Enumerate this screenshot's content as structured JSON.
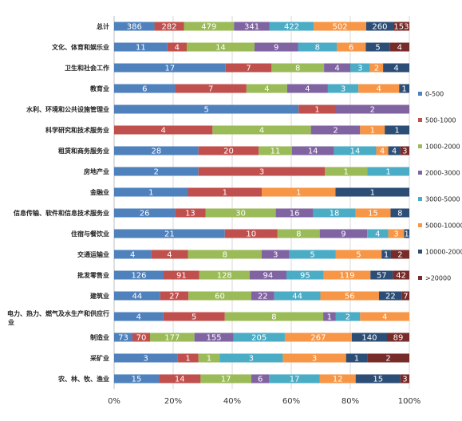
{
  "colors": [
    "#4F81BD",
    "#C0504D",
    "#9BBB59",
    "#8064A2",
    "#4BACC6",
    "#F79646",
    "#2C4D75",
    "#772C2A"
  ],
  "chart_data": {
    "type": "bar",
    "orientation": "horizontal",
    "stacked": "percent",
    "xlim": [
      0,
      100
    ],
    "x_ticks": [
      "0%",
      "20%",
      "40%",
      "60%",
      "80%",
      "100%"
    ],
    "grid": true,
    "legend_position": "right",
    "categories": [
      "总计",
      "文化、体育和娱乐业",
      "卫生和社会工作",
      "教育业",
      "水利、环境和公共设施管理业",
      "科学研究和技术服务业",
      "租赁和商务服务业",
      "房地产业",
      "金融业",
      "信息传输、软件和信息技术服务业",
      "住宿与餐饮业",
      "交通运输业",
      "批发零售业",
      "建筑业",
      "电力、热力、燃气及水生产和供应行业",
      "制造业",
      "采矿业",
      "农、林、牧、渔业"
    ],
    "series": [
      {
        "name": "0-500",
        "values": [
          386,
          11,
          17,
          6,
          5,
          0,
          28,
          2,
          1,
          26,
          21,
          4,
          126,
          44,
          4,
          73,
          3,
          15
        ]
      },
      {
        "name": "500-1000",
        "values": [
          282,
          4,
          7,
          7,
          1,
          4,
          20,
          3,
          1,
          13,
          10,
          4,
          91,
          27,
          5,
          70,
          1,
          14
        ]
      },
      {
        "name": "1000-2000",
        "values": [
          479,
          14,
          8,
          4,
          0,
          4,
          11,
          1,
          0,
          30,
          8,
          8,
          128,
          60,
          8,
          177,
          1,
          17
        ]
      },
      {
        "name": "2000-3000",
        "values": [
          341,
          9,
          4,
          4,
          2,
          2,
          14,
          0,
          0,
          16,
          9,
          3,
          94,
          22,
          1,
          155,
          0,
          6
        ]
      },
      {
        "name": "3000-5000",
        "values": [
          422,
          8,
          3,
          3,
          0,
          0,
          14,
          1,
          0,
          18,
          4,
          5,
          95,
          44,
          2,
          205,
          3,
          17
        ]
      },
      {
        "name": "5000-10000",
        "values": [
          502,
          6,
          2,
          4,
          0,
          1,
          4,
          0,
          1,
          15,
          3,
          5,
          119,
          56,
          4,
          267,
          3,
          12
        ]
      },
      {
        "name": "10000-20000",
        "values": [
          260,
          5,
          4,
          1,
          0,
          1,
          4,
          0,
          1,
          8,
          1,
          1,
          57,
          22,
          0,
          140,
          1,
          15
        ]
      },
      {
        "name": ">20000",
        "values": [
          153,
          4,
          0,
          0,
          0,
          0,
          3,
          0,
          0,
          0,
          0,
          2,
          42,
          7,
          0,
          89,
          2,
          3
        ]
      }
    ]
  }
}
